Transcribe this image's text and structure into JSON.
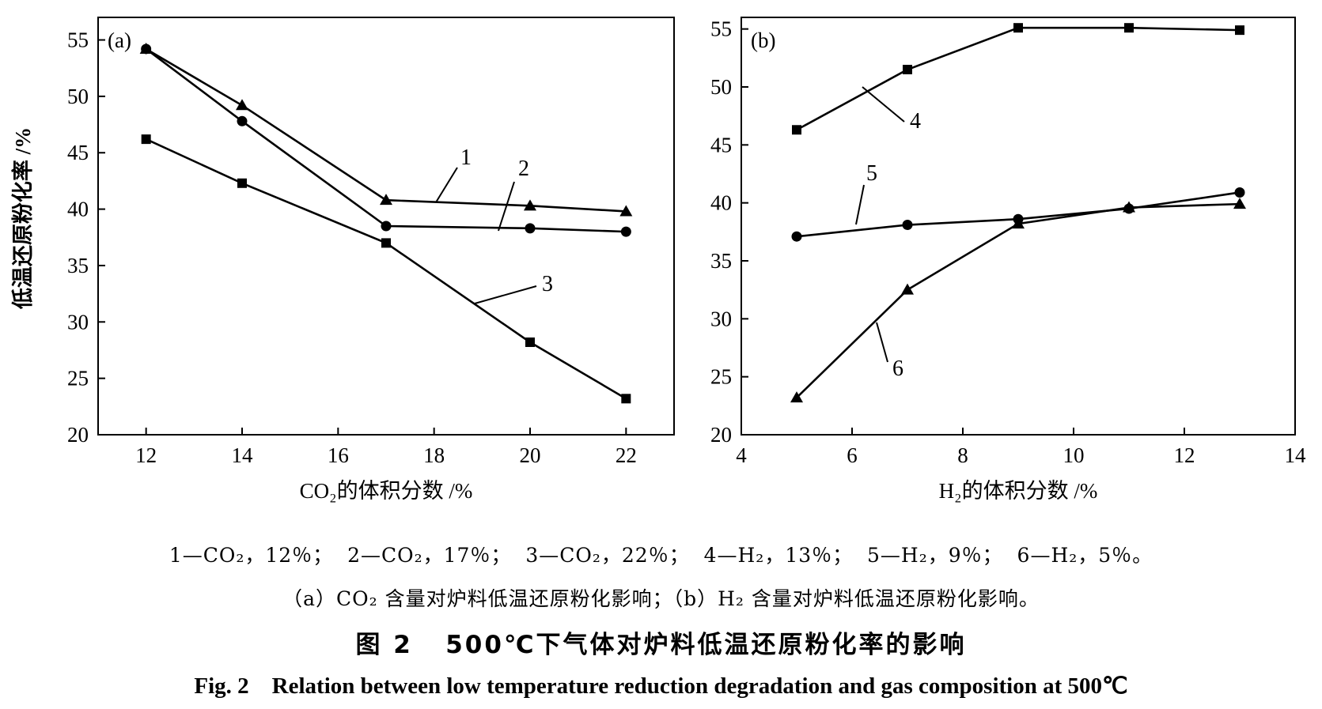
{
  "chart_data": [
    {
      "panel": "(a)",
      "type": "line",
      "xlabel": "CO₂的体积分数 /%",
      "ylabel": "低温还原粉化率 /%",
      "xlim": [
        11,
        23
      ],
      "ylim": [
        20,
        57
      ],
      "xticks": [
        12,
        14,
        16,
        18,
        20,
        22
      ],
      "yticks": [
        20,
        25,
        30,
        35,
        40,
        45,
        50,
        55
      ],
      "grid": false,
      "series": [
        {
          "name": "1",
          "marker": "triangle",
          "x": [
            12,
            14,
            17,
            20,
            22
          ],
          "y": [
            54.2,
            49.2,
            40.8,
            40.3,
            39.8
          ]
        },
        {
          "name": "2",
          "marker": "circle",
          "x": [
            12,
            14,
            17,
            20,
            22
          ],
          "y": [
            54.2,
            47.8,
            38.5,
            38.3,
            38.0
          ]
        },
        {
          "name": "3",
          "marker": "square",
          "x": [
            12,
            14,
            17,
            20,
            22
          ],
          "y": [
            46.2,
            42.3,
            37.0,
            28.2,
            23.2
          ]
        }
      ]
    },
    {
      "panel": "(b)",
      "type": "line",
      "xlabel": "H₂的体积分数 /%",
      "ylabel": "",
      "xlim": [
        4,
        14
      ],
      "ylim": [
        20,
        56
      ],
      "xticks": [
        4,
        6,
        8,
        10,
        12,
        14
      ],
      "yticks": [
        20,
        25,
        30,
        35,
        40,
        45,
        50,
        55
      ],
      "grid": false,
      "series": [
        {
          "name": "4",
          "marker": "square",
          "x": [
            5,
            7,
            9,
            11,
            13
          ],
          "y": [
            46.3,
            51.5,
            55.1,
            55.1,
            54.9
          ]
        },
        {
          "name": "5",
          "marker": "circle",
          "x": [
            5,
            7,
            9,
            11,
            13
          ],
          "y": [
            37.1,
            38.1,
            38.6,
            39.5,
            40.9
          ]
        },
        {
          "name": "6",
          "marker": "triangle",
          "x": [
            5,
            7,
            9,
            11,
            13
          ],
          "y": [
            23.2,
            32.5,
            38.2,
            39.6,
            39.9
          ]
        }
      ]
    }
  ],
  "caption": {
    "legend_line": "1—CO₂，12％；  2—CO₂，17％；  3—CO₂，22％；  4—H₂，13％；  5—H₂，9％；  6—H₂，5％。",
    "sub_line": "（a）CO₂ 含量对炉料低温还原粉化影响；（b）H₂ 含量对炉料低温还原粉化影响。",
    "title_cn": "图 2   500℃下气体对炉料低温还原粉化率的影响",
    "title_en": "Fig. 2    Relation between low temperature reduction degradation and gas composition at 500℃"
  }
}
